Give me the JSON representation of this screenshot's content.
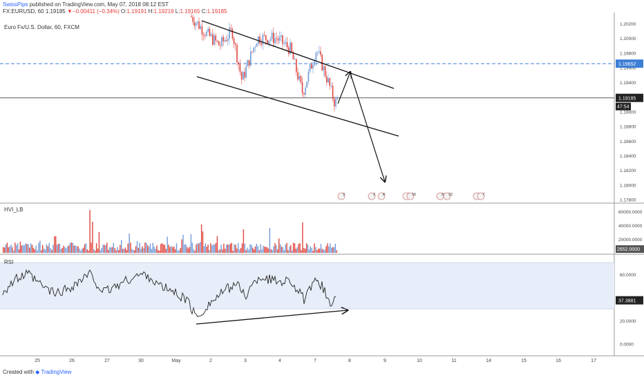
{
  "header": {
    "publisher": "SwissPips",
    "published_text": "published on TradingView.com, May 07, 2018 08:12 EST",
    "symbol_line": "FX:EURUSD, 60",
    "last": "1.19185",
    "change": "−0.00411 (−0.34%)",
    "o_label": "O:",
    "o": "1.19191",
    "h_label": "H:",
    "h": "1.19219",
    "l_label": "L:",
    "l": "1.19165",
    "c_label": "C:",
    "c": "1.19185"
  },
  "footer": {
    "created_with": "Created with",
    "brand": "TradingView"
  },
  "colors": {
    "up": "#6f9ad6",
    "down": "#e0443c",
    "dashed": "#3d7fd6",
    "rsi_band": "#e8eef9"
  },
  "chart_data": [
    {
      "type": "candlestick",
      "title": "Euro Fx/U.S. Dollar, 60, FXCM",
      "ylim": [
        1.1775,
        1.2035
      ],
      "y_ticks": [
        "1.20200",
        "1.20000",
        "1.19800",
        "1.19600",
        "1.19400",
        "1.19200",
        "1.19000",
        "1.18800",
        "1.18600",
        "1.18400",
        "1.18200",
        "1.18000",
        "1.17800"
      ],
      "last_price_label": "1.19185",
      "last_price": 1.19185,
      "dashed_level_label": "1.19652",
      "dashed_level": 1.19652,
      "countdown": "47:54",
      "x_labels": [
        "25",
        "26",
        "27",
        "30",
        "May",
        "2",
        "3",
        "4",
        "7",
        "8",
        "9",
        "10",
        "11",
        "14",
        "15",
        "16",
        "17"
      ],
      "events": [
        "3",
        "2",
        "8",
        "5",
        "16",
        "34",
        "22",
        "2",
        "7"
      ],
      "key_points": [
        {
          "t": "May 1 open",
          "price": 1.203
        },
        {
          "t": "May 3",
          "price": 1.1942
        },
        {
          "t": "May 4",
          "price": 1.2005
        },
        {
          "t": "May 7 low",
          "price": 1.191
        },
        {
          "t": "May 7",
          "price": 1.19185
        }
      ]
    },
    {
      "type": "bar",
      "title": "HVI_LB",
      "ylim": [
        0,
        70000
      ],
      "y_ticks": [
        "60000.0000",
        "40000.0000",
        "20000.0000"
      ],
      "last_label": "2652.0000"
    },
    {
      "type": "line",
      "title": "RSI",
      "ylim": [
        -10,
        76
      ],
      "band": [
        30,
        70
      ],
      "y_ticks": [
        "60.0000",
        "20.0000",
        "0.0000"
      ],
      "last_label": "37.3881",
      "last": 37.3881
    }
  ]
}
